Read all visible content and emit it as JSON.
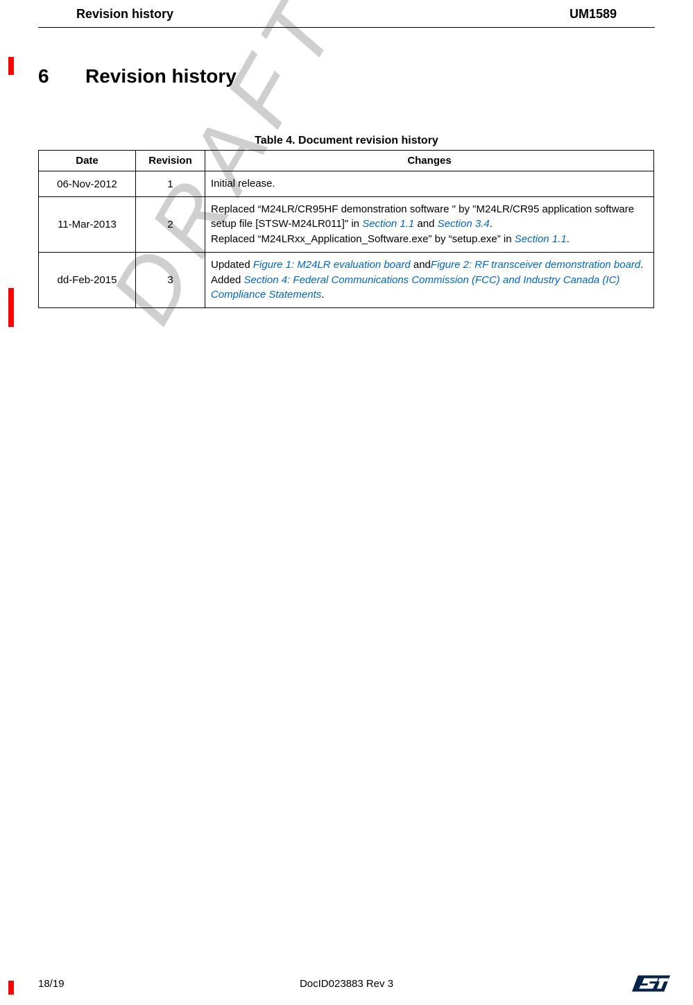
{
  "header": {
    "left": "Revision history",
    "right": "UM1589"
  },
  "section": {
    "number": "6",
    "title": "Revision history"
  },
  "table": {
    "caption": "Table 4. Document revision history",
    "columns": [
      "Date",
      "Revision",
      "Changes"
    ],
    "rows": [
      {
        "date": "06-Nov-2012",
        "revision": "1",
        "changes": {
          "parts": [
            {
              "text": "Initial release."
            }
          ]
        }
      },
      {
        "date": "11-Mar-2013",
        "revision": "2",
        "changes": {
          "paras": [
            [
              {
                "text": "Replaced “M24LR/CR95HF demonstration software \" by \"M24LR/CR95 application software setup file [STSW-M24LR011]\" in "
              },
              {
                "text": "Section 1.1",
                "link": true
              },
              {
                "text": " and "
              },
              {
                "text": "Section 3.4",
                "link": true
              },
              {
                "text": "."
              }
            ],
            [
              {
                "text": "Replaced “M24LRxx_Application_Software.exe” by “setup.exe” in "
              },
              {
                "text": "Section 1.1",
                "link": true
              },
              {
                "text": "."
              }
            ]
          ]
        }
      },
      {
        "date": "dd-Feb-2015",
        "revision": "3",
        "changes": {
          "paras": [
            [
              {
                "text": "Updated "
              },
              {
                "text": "Figure 1: M24LR evaluation board ",
                "link": true
              },
              {
                "text": "and"
              },
              {
                "text": "Figure 2: RF transceiver demonstration board",
                "link": true
              },
              {
                "text": "."
              }
            ],
            [
              {
                "text": "Added "
              },
              {
                "text": "Section 4: Federal Communications Commission (FCC) and Industry Canada (IC) Compliance Statements",
                "link": true
              },
              {
                "text": "."
              }
            ]
          ]
        }
      }
    ]
  },
  "watermark": "DRAFT",
  "footer": {
    "left": "18/19",
    "center": "DocID023883 Rev 3"
  },
  "colors": {
    "link": "#0066cc",
    "red": "#ff0000",
    "watermark": "#cfcfcf",
    "logo_blue": "#03234b",
    "logo_white": "#ffffff"
  }
}
